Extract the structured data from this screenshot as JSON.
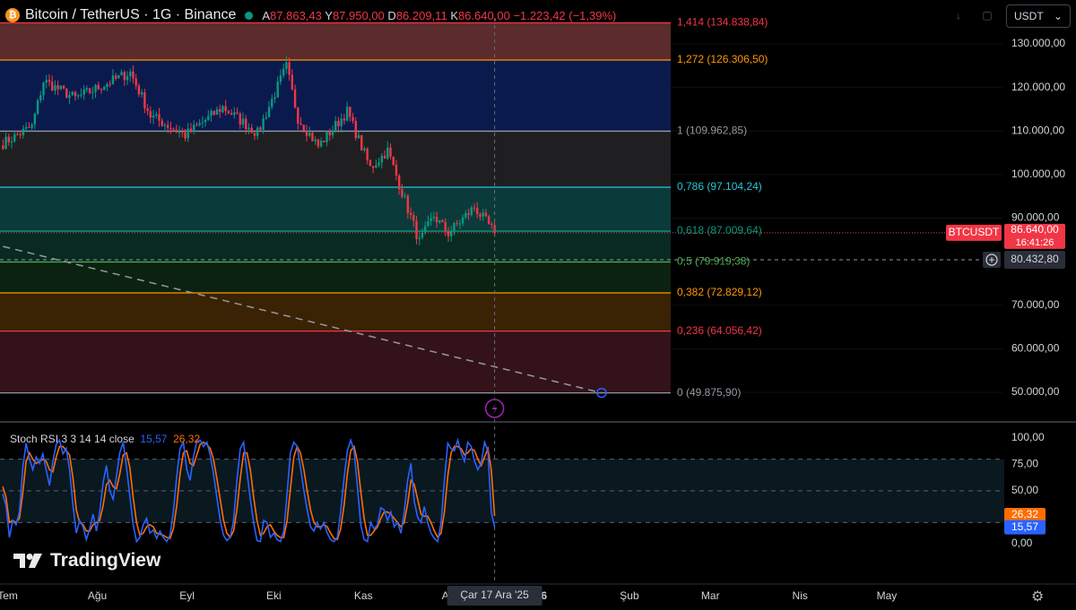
{
  "header": {
    "symbol_title": "Bitcoin / TetherUS · 1G · Binance",
    "coin_glyph": "₿",
    "ohlc": [
      {
        "key": "A",
        "value": "87.863,43"
      },
      {
        "key": "Y",
        "value": "87.950,00"
      },
      {
        "key": "D",
        "value": "86.209,11"
      },
      {
        "key": "K",
        "value": "86.640,00"
      }
    ],
    "change": "−1.223,42 (−1,39%)",
    "currency_selector": "USDT",
    "currency_arrow": "⌄",
    "toolbar_icons": [
      "down-arrow-icon",
      "square-icon"
    ]
  },
  "colors": {
    "bull": "#089981",
    "bear": "#f23645",
    "stoch_k": "#2962ff",
    "stoch_d": "#ff6d00"
  },
  "chart_data": [
    {
      "type": "candlestick",
      "symbol": "BTCUSDT",
      "interval": "1D",
      "ylim": [
        47000,
        136000
      ],
      "ylabels": [
        "130.000,00",
        "120.000,00",
        "110.000,00",
        "100.000,00",
        "90.000,00",
        "70.000,00",
        "60.000,00",
        "50.000,00"
      ],
      "ytick_values": [
        130000,
        120000,
        110000,
        100000,
        90000,
        70000,
        60000,
        50000
      ],
      "price_series": {
        "months": [
          "Tem",
          "Ağu",
          "Eyl",
          "Eki",
          "Kas",
          "Ara"
        ],
        "anchors": [
          {
            "date": "2025-06-30",
            "close": 107200
          },
          {
            "date": "2025-07-10",
            "close": 111000
          },
          {
            "date": "2025-07-14",
            "close": 121500
          },
          {
            "date": "2025-07-25",
            "close": 117500
          },
          {
            "date": "2025-08-13",
            "close": 123500
          },
          {
            "date": "2025-08-20",
            "close": 113500
          },
          {
            "date": "2025-09-01",
            "close": 109000
          },
          {
            "date": "2025-09-14",
            "close": 115500
          },
          {
            "date": "2025-09-26",
            "close": 109500
          },
          {
            "date": "2025-10-06",
            "close": 124800
          },
          {
            "date": "2025-10-10",
            "close": 113000
          },
          {
            "date": "2025-10-17",
            "close": 106500
          },
          {
            "date": "2025-10-27",
            "close": 114500
          },
          {
            "date": "2025-11-04",
            "close": 101500
          },
          {
            "date": "2025-11-10",
            "close": 105500
          },
          {
            "date": "2025-11-21",
            "close": 84500
          },
          {
            "date": "2025-11-26",
            "close": 90500
          },
          {
            "date": "2025-12-01",
            "close": 86500
          },
          {
            "date": "2025-12-10",
            "close": 92500
          },
          {
            "date": "2025-12-17",
            "close": 86640
          }
        ]
      },
      "fibonacci": [
        {
          "ratio": "1,414",
          "price": 134838.84,
          "label": "(134.838,84)",
          "color": "#f23645",
          "fill": "#5c2b2b"
        },
        {
          "ratio": "1,272",
          "price": 126306.5,
          "label": "(126.306,50)",
          "color": "#ff9800",
          "fill": "#0b1a4d"
        },
        {
          "ratio": "1",
          "price": 109962.85,
          "label": "(109.962,85)",
          "color": "#9598a1",
          "fill": "#1f1f21"
        },
        {
          "ratio": "0,786",
          "price": 97104.24,
          "label": "(97.104,24)",
          "color": "#26c6da",
          "fill": "#0b3a3a"
        },
        {
          "ratio": "0,618",
          "price": 87009.64,
          "label": "(87.009,64)",
          "color": "#089981",
          "fill": "#092a21"
        },
        {
          "ratio": "0,5",
          "price": 79919.38,
          "label": "(79.919,38)",
          "color": "#4caf50",
          "fill": "#0c2210"
        },
        {
          "ratio": "0,382",
          "price": 72829.12,
          "label": "(72.829,12)",
          "color": "#ff9800",
          "fill": "#3a2205"
        },
        {
          "ratio": "0,236",
          "price": 64056.42,
          "label": "(64.056,42)",
          "color": "#f23645",
          "fill": "#33121a"
        },
        {
          "ratio": "0",
          "price": 49875.9,
          "label": "(49.875,90)",
          "color": "#9598a1",
          "fill": ""
        }
      ],
      "trendline": {
        "from": {
          "date": "2025-06-30",
          "price": 83500
        },
        "to": {
          "date": "2026-01-23",
          "price": 49875.9
        }
      },
      "alert_line_price": 80432.8,
      "badges": [
        {
          "symbol": "BTCUSDT",
          "value": "86.640,00",
          "countdown": "16:41:26",
          "price": 86640
        },
        {
          "value": "80.432,80",
          "price": 80432.8
        }
      ]
    },
    {
      "type": "line",
      "title": "Stoch RSI 3 3 14 14 close",
      "values_shown": [
        "15,57",
        "26,32"
      ],
      "ylim": [
        0,
        100
      ],
      "yticks": [
        "100,00",
        "75,00",
        "50,00",
        "0,00"
      ],
      "ytick_values": [
        100,
        75,
        50,
        0
      ],
      "band": [
        20,
        80
      ],
      "series": [
        {
          "values": [
            47,
            36,
            6,
            22,
            18,
            30,
            72,
            95,
            80,
            70,
            82,
            76,
            85,
            70,
            55,
            78,
            94,
            98,
            85,
            90,
            70,
            36,
            10,
            22,
            16,
            4,
            14,
            28,
            12,
            30,
            58,
            74,
            50,
            42,
            64,
            86,
            96,
            72,
            45,
            18,
            2,
            6,
            18,
            24,
            10,
            13,
            5,
            12,
            6,
            2,
            8,
            30,
            64,
            90,
            96,
            70,
            60,
            82,
            97,
            98,
            92,
            96,
            84,
            66,
            44,
            22,
            8,
            3,
            6,
            22,
            60,
            90,
            96,
            68,
            42,
            20,
            3,
            2,
            22,
            20,
            6,
            10,
            4,
            2,
            12,
            48,
            86,
            96,
            92,
            72,
            50,
            32,
            16,
            12,
            20,
            14,
            20,
            10,
            4,
            2,
            6,
            30,
            62,
            88,
            98,
            88,
            54,
            18,
            4,
            2,
            20,
            14,
            18,
            34,
            32,
            22,
            30,
            16,
            20,
            10,
            30,
            60,
            76,
            40,
            25,
            20,
            35,
            20,
            10,
            5,
            2,
            20,
            60,
            95,
            90,
            88,
            98,
            86,
            78,
            96,
            92,
            78,
            70,
            76,
            96,
            88,
            30,
            15.57
          ]
        },
        {
          "values": [
            54,
            44,
            20,
            22,
            20,
            24,
            48,
            78,
            86,
            80,
            76,
            78,
            80,
            78,
            70,
            68,
            82,
            92,
            92,
            88,
            84,
            62,
            32,
            20,
            18,
            12,
            12,
            18,
            20,
            22,
            36,
            56,
            60,
            54,
            52,
            66,
            84,
            86,
            72,
            44,
            20,
            8,
            10,
            16,
            18,
            16,
            10,
            9,
            8,
            6,
            5,
            14,
            36,
            66,
            86,
            88,
            76,
            74,
            84,
            94,
            96,
            94,
            90,
            80,
            62,
            42,
            22,
            10,
            6,
            12,
            32,
            62,
            86,
            86,
            70,
            44,
            22,
            8,
            10,
            16,
            18,
            12,
            8,
            6,
            6,
            22,
            52,
            82,
            92,
            86,
            70,
            50,
            32,
            20,
            16,
            16,
            18,
            16,
            10,
            5,
            4,
            14,
            36,
            66,
            88,
            92,
            78,
            50,
            24,
            8,
            8,
            12,
            16,
            24,
            30,
            30,
            28,
            24,
            20,
            16,
            20,
            38,
            60,
            56,
            42,
            28,
            26,
            26,
            20,
            12,
            6,
            10,
            30,
            64,
            86,
            92,
            92,
            90,
            84,
            86,
            90,
            88,
            80,
            74,
            82,
            90,
            70,
            26.32
          ]
        }
      ],
      "badges": [
        {
          "value": "26,32",
          "num": 26.32
        },
        {
          "value": "15,57",
          "num": 15.57
        }
      ]
    }
  ],
  "xaxis": {
    "labels": [
      "Tem",
      "Ağu",
      "Eyl",
      "Eki",
      "Kas",
      "Ara",
      "'26",
      "Şub",
      "Mar",
      "Nis",
      "May"
    ],
    "label_dates": [
      "2025-07-01",
      "2025-08-01",
      "2025-09-01",
      "2025-10-01",
      "2025-11-01",
      "2025-12-01",
      "2026-01-01",
      "2026-02-01",
      "2026-03-01",
      "2026-04-01",
      "2026-05-01"
    ],
    "crosshair_label": "Çar 17 Ara '25"
  },
  "watermark": "TradingView",
  "settings_icon": "⚙"
}
